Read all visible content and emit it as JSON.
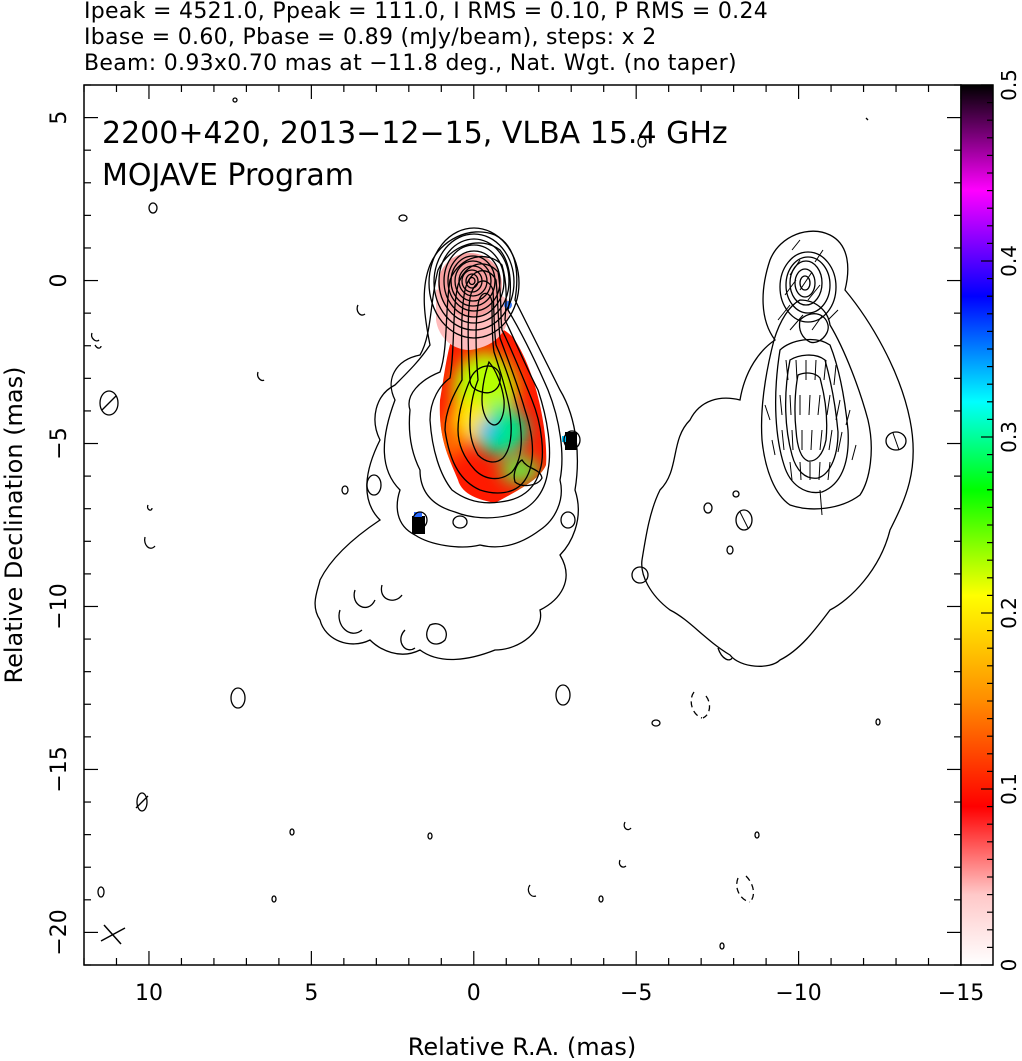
{
  "header": {
    "line1": "Ipeak = 4521.0, Ppeak = 111.0, I RMS = 0.10, P RMS = 0.24",
    "line2": "Ibase = 0.60, Pbase = 0.89 (mJy/beam), steps: x 2",
    "line3": "Beam: 0.93x0.70 mas at −11.8 deg., Nat. Wgt. (no taper)"
  },
  "chart_data": {
    "type": "heatmap",
    "title": "2200+420, 2013−12−15, VLBA 15.4 GHz",
    "subtitle": "MOJAVE Program",
    "xlabel": "Relative R.A. (mas)",
    "ylabel": "Relative Declination (mas)",
    "xlim": [
      12,
      -15
    ],
    "ylim": [
      -21,
      6
    ],
    "x_ticks": [
      10,
      5,
      0,
      -5,
      -10,
      -15
    ],
    "x_tick_labels": [
      "10",
      "5",
      "0",
      "−5",
      "−10",
      "−15"
    ],
    "y_ticks": [
      5,
      0,
      -5,
      -10,
      -15,
      -20
    ],
    "y_tick_labels": [
      "5",
      "0",
      "−5",
      "−10",
      "−15",
      "−20"
    ],
    "grid": false,
    "colorbar": {
      "range": [
        0,
        0.5
      ],
      "ticks": [
        0,
        0.1,
        0.2,
        0.3,
        0.4,
        0.5
      ],
      "tick_labels": [
        "0",
        "0.1",
        "0.2",
        "0.3",
        "0.4",
        "0.5"
      ],
      "colors": [
        "#ffffff",
        "#ffc8c8",
        "#ff0000",
        "#ff8c00",
        "#ffff00",
        "#00ff00",
        "#00ffff",
        "#0000ff",
        "#ff00ff",
        "#000000"
      ]
    },
    "core": {
      "x": 0,
      "y": 0
    },
    "left_panel_contours_mJy": [
      0.6,
      1.2,
      2.4,
      4.8,
      9.6,
      19.2,
      38.4,
      76.8,
      153.6,
      307.2,
      614.4,
      1228.8,
      2457.6
    ],
    "jet_ridge": [
      {
        "x": 0,
        "y": 0
      },
      {
        "x": -0.3,
        "y": -1.5
      },
      {
        "x": -0.5,
        "y": -3
      },
      {
        "x": -0.6,
        "y": -4.5
      },
      {
        "x": -1.3,
        "y": -6
      }
    ],
    "fractional_polarization_samples": [
      {
        "x": 0.0,
        "y": 0.0,
        "value": 0.04
      },
      {
        "x": 0.0,
        "y": -2.0,
        "value": 0.09
      },
      {
        "x": 0.5,
        "y": -4.0,
        "value": 0.12
      },
      {
        "x": -0.5,
        "y": -3.5,
        "value": 0.22
      },
      {
        "x": -0.5,
        "y": -4.6,
        "value": 0.32
      },
      {
        "x": -1.2,
        "y": -5.8,
        "value": 0.25
      },
      {
        "x": -2.9,
        "y": -4.8,
        "value": 0.48
      },
      {
        "x": 1.7,
        "y": -7.4,
        "value": 0.48
      }
    ]
  }
}
